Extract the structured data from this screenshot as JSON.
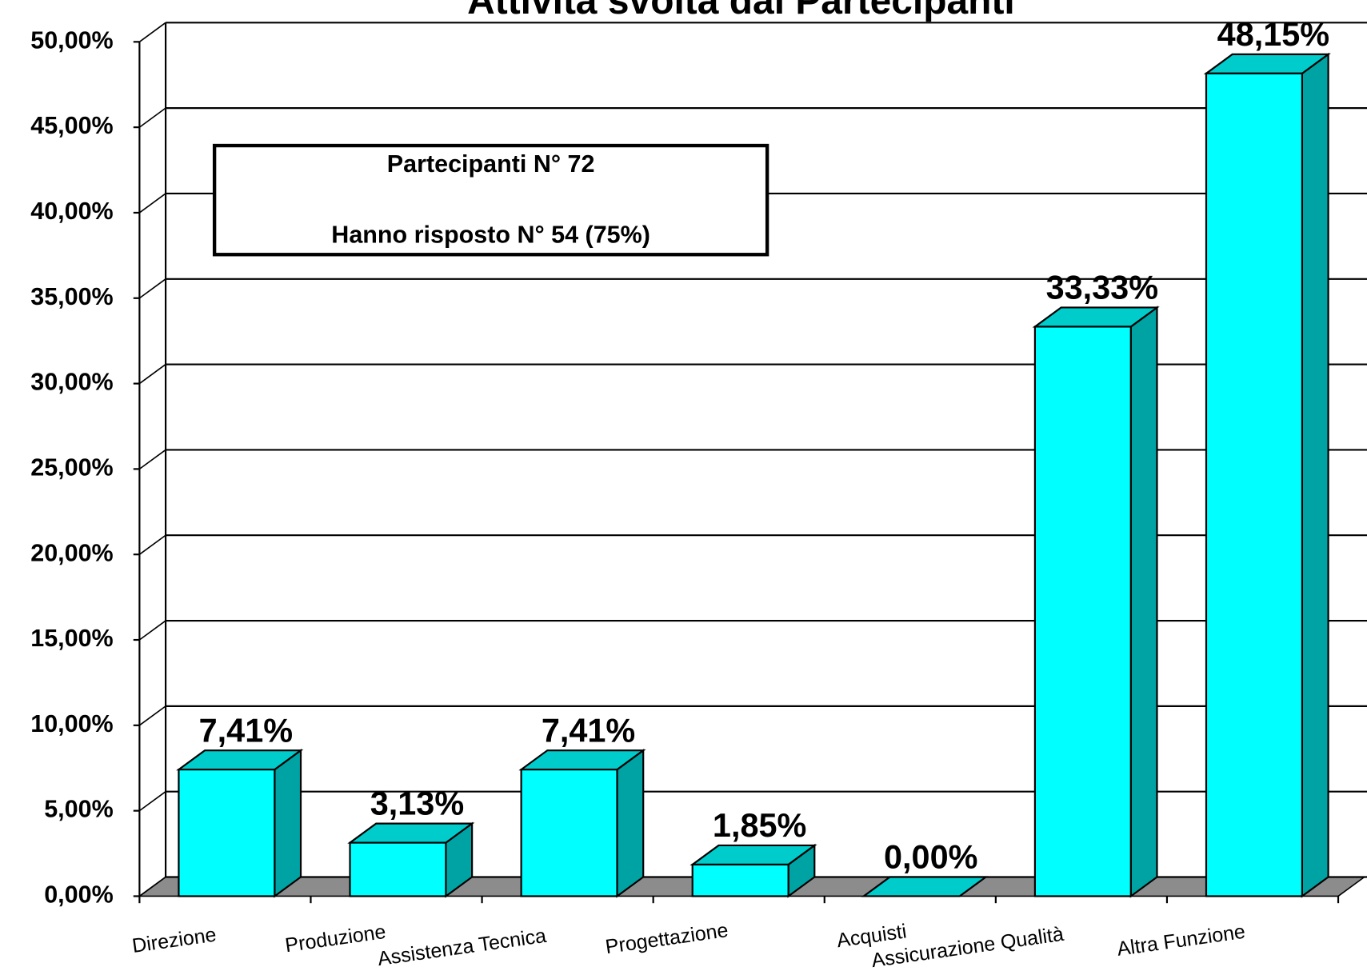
{
  "chart_data": {
    "type": "bar3d",
    "title": "Attività svolta dai Partecipanti",
    "annotations": [
      "Partecipanti N° 72",
      "Hanno risposto N° 54 (75%)"
    ],
    "categories": [
      "Direzione",
      "Produzione",
      "Assistenza Tecnica",
      "Progettazione",
      "Acquisti",
      "Assicurazione Qualità",
      "Altra Funzione"
    ],
    "values": [
      7.41,
      3.13,
      7.41,
      1.85,
      0,
      33.33,
      48.15
    ],
    "value_labels": [
      "7,41%",
      "3,13%",
      "7,41%",
      "1,85%",
      "0,00%",
      "33,33%",
      "48,15%"
    ],
    "colors": {
      "front": "#00ffff",
      "top": "#00cccc",
      "side": "#00a3a3",
      "floor": "#8c8c8c"
    },
    "ylim": [
      0,
      50
    ],
    "yticks": [
      {
        "value": 0,
        "label": "0,00%"
      },
      {
        "value": 5,
        "label": "5,00%"
      },
      {
        "value": 10,
        "label": "10,00%"
      },
      {
        "value": 15,
        "label": "15,00%"
      },
      {
        "value": 20,
        "label": "20,00%"
      },
      {
        "value": 25,
        "label": "25,00%"
      },
      {
        "value": 30,
        "label": "30,00%"
      },
      {
        "value": 35,
        "label": "35,00%"
      },
      {
        "value": 40,
        "label": "40,00%"
      },
      {
        "value": 45,
        "label": "45,00%"
      },
      {
        "value": 50,
        "label": "50,00%"
      }
    ],
    "grid": true
  }
}
